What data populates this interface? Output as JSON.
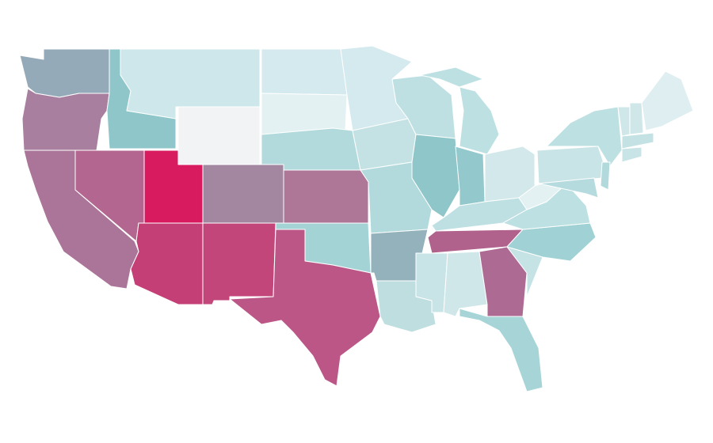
{
  "map": {
    "regions": [
      {
        "color": "#94aab8"
      },
      {
        "color": "#a87f9f"
      },
      {
        "color": "#ab7599"
      },
      {
        "color": "#b3668f"
      },
      {
        "color": "#8ec6c9"
      },
      {
        "color": "#cde7ea"
      },
      {
        "color": "#f1f3f4"
      },
      {
        "color": "#d81b5f"
      },
      {
        "color": "#a3869f"
      },
      {
        "color": "#c33f76"
      },
      {
        "color": "#c24679"
      },
      {
        "color": "#d5eaee"
      },
      {
        "color": "#e3f1f3"
      },
      {
        "color": "#b2dadc"
      },
      {
        "color": "#ae7697"
      },
      {
        "color": "#a3d3d5"
      },
      {
        "color": "#bb5686"
      },
      {
        "color": "#d5eaee"
      },
      {
        "color": "#c4e2e4"
      },
      {
        "color": "#b2dadc"
      },
      {
        "color": "#93b2bc"
      },
      {
        "color": "#bedee0"
      },
      {
        "color": "#bee0e3"
      },
      {
        "color": "#8ec6c9"
      },
      {
        "color": "#93c8cc"
      },
      {
        "color": "#bde0e2"
      },
      {
        "color": "#bde0e2"
      },
      {
        "color": "#d2e8ea"
      },
      {
        "color": "#bee0e3"
      },
      {
        "color": "#b0628d"
      },
      {
        "color": "#c8e4e6"
      },
      {
        "color": "#cfe7e9"
      },
      {
        "color": "#ad6a93"
      },
      {
        "color": "#a7d5d7"
      },
      {
        "color": "#c5e3e5"
      },
      {
        "color": "#a0d1d4"
      },
      {
        "color": "#bde0e2"
      },
      {
        "color": "#e3f1f3"
      },
      {
        "color": "#c8e4e6"
      },
      {
        "color": "#bde0e2"
      },
      {
        "color": "#b2dadc"
      },
      {
        "color": "#b5dbde"
      },
      {
        "color": "#cfe7e9"
      },
      {
        "color": "#cfe7e9"
      },
      {
        "color": "#dfeff1"
      },
      {
        "color": "#c4e2e4"
      },
      {
        "color": "#c8e4e6"
      }
    ]
  }
}
